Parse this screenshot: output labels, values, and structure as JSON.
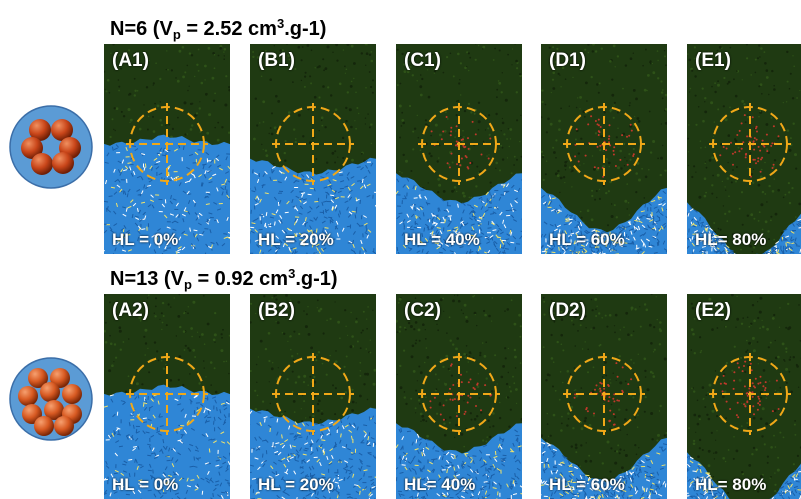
{
  "rows": [
    {
      "title": {
        "prefix": "N=6  (V",
        "sub": "p",
        "mid": " = 2.52 cm",
        "sup": "3",
        "suffix": ".g-1)"
      },
      "cluster": "6-sphere-cluster",
      "panels": [
        {
          "id": "(A1)",
          "hl": "HL = 0%",
          "hl_value": 0
        },
        {
          "id": "(B1)",
          "hl": "HL = 20%",
          "hl_value": 20
        },
        {
          "id": "(C1)",
          "hl": "HL = 40%",
          "hl_value": 40
        },
        {
          "id": "(D1)",
          "hl": "HL = 60%",
          "hl_value": 60
        },
        {
          "id": "(E1)",
          "hl": "HL= 80%",
          "hl_value": 80
        }
      ]
    },
    {
      "title": {
        "prefix": "N=13 (V",
        "sub": "p",
        "mid": " = 0.92 cm",
        "sup": "3",
        "suffix": ".g-1)"
      },
      "cluster": "13-sphere-cluster",
      "panels": [
        {
          "id": "(A2)",
          "hl": "HL = 0%",
          "hl_value": 0
        },
        {
          "id": "(B2)",
          "hl": "HL = 20%",
          "hl_value": 20
        },
        {
          "id": "(C2)",
          "hl": "HL= 40%",
          "hl_value": 40
        },
        {
          "id": "(D2)",
          "hl": "HL = 60%",
          "hl_value": 60
        },
        {
          "id": "(E2)",
          "hl": "HL= 80%",
          "hl_value": 80
        }
      ]
    }
  ],
  "colors": {
    "hydrocarbon": "#1f3a12",
    "water": "#2f86d6",
    "crosshair": "#f0a818",
    "sphere": "#d4541e",
    "cluster_bg": "#5b9bd5"
  }
}
